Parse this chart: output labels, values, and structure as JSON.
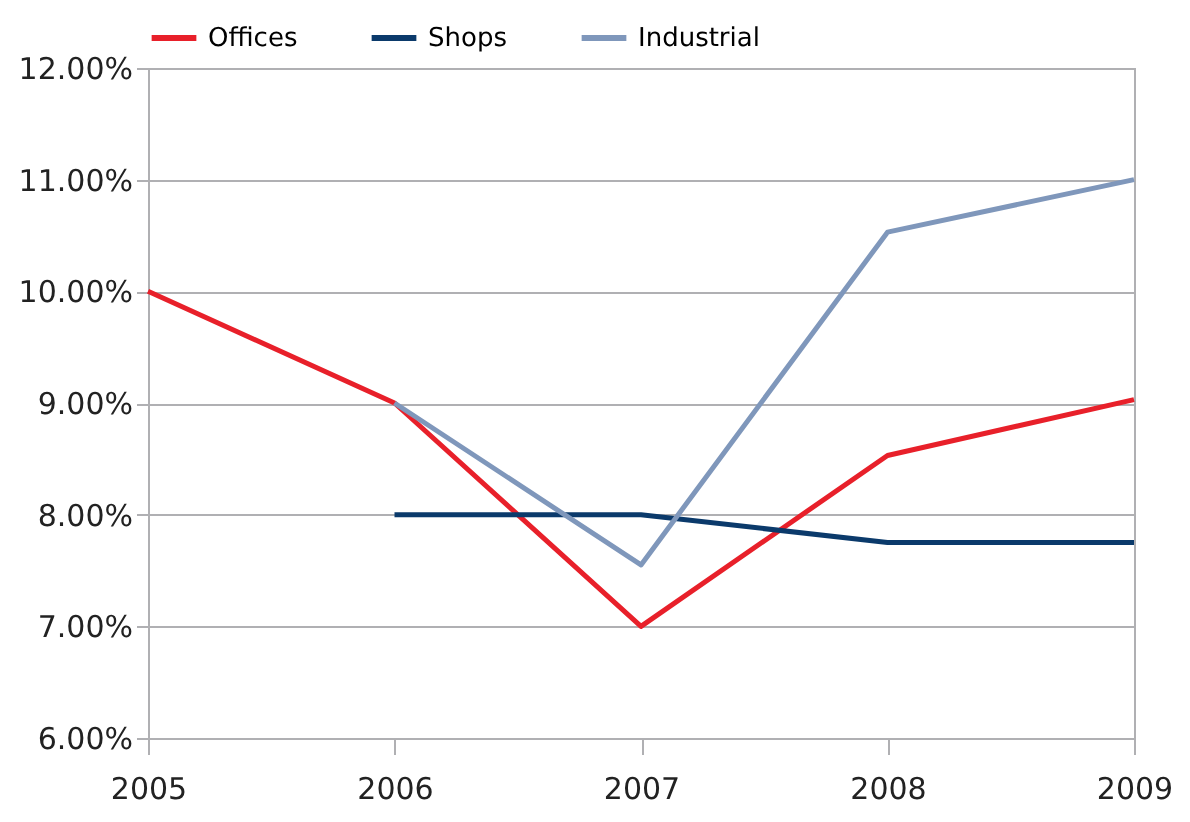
{
  "chart_data": {
    "type": "line",
    "categories": [
      "2005",
      "2006",
      "2007",
      "2008",
      "2009"
    ],
    "series": [
      {
        "name": "Offices",
        "color": "#e8202a",
        "values": [
          10,
          9,
          7,
          8.53,
          9.03
        ]
      },
      {
        "name": "Shops",
        "color": "#0b3a6b",
        "values": [
          null,
          8,
          8,
          7.75,
          7.75
        ]
      },
      {
        "name": "Industrial",
        "color": "#7f97bb",
        "values": [
          null,
          9,
          7.55,
          10.53,
          11
        ]
      }
    ],
    "ylim": [
      6,
      12
    ],
    "yticks": [
      {
        "value": 6,
        "label": "6.00%"
      },
      {
        "value": 7,
        "label": "7.00%"
      },
      {
        "value": 8,
        "label": "8.00%"
      },
      {
        "value": 9,
        "label": "9.00%"
      },
      {
        "value": 10,
        "label": "10.00%"
      },
      {
        "value": 11,
        "label": "11.00%"
      },
      {
        "value": 12,
        "label": "12.00%"
      }
    ],
    "grid": "y",
    "legend": "top",
    "marker": "none",
    "line_style": "solid"
  }
}
